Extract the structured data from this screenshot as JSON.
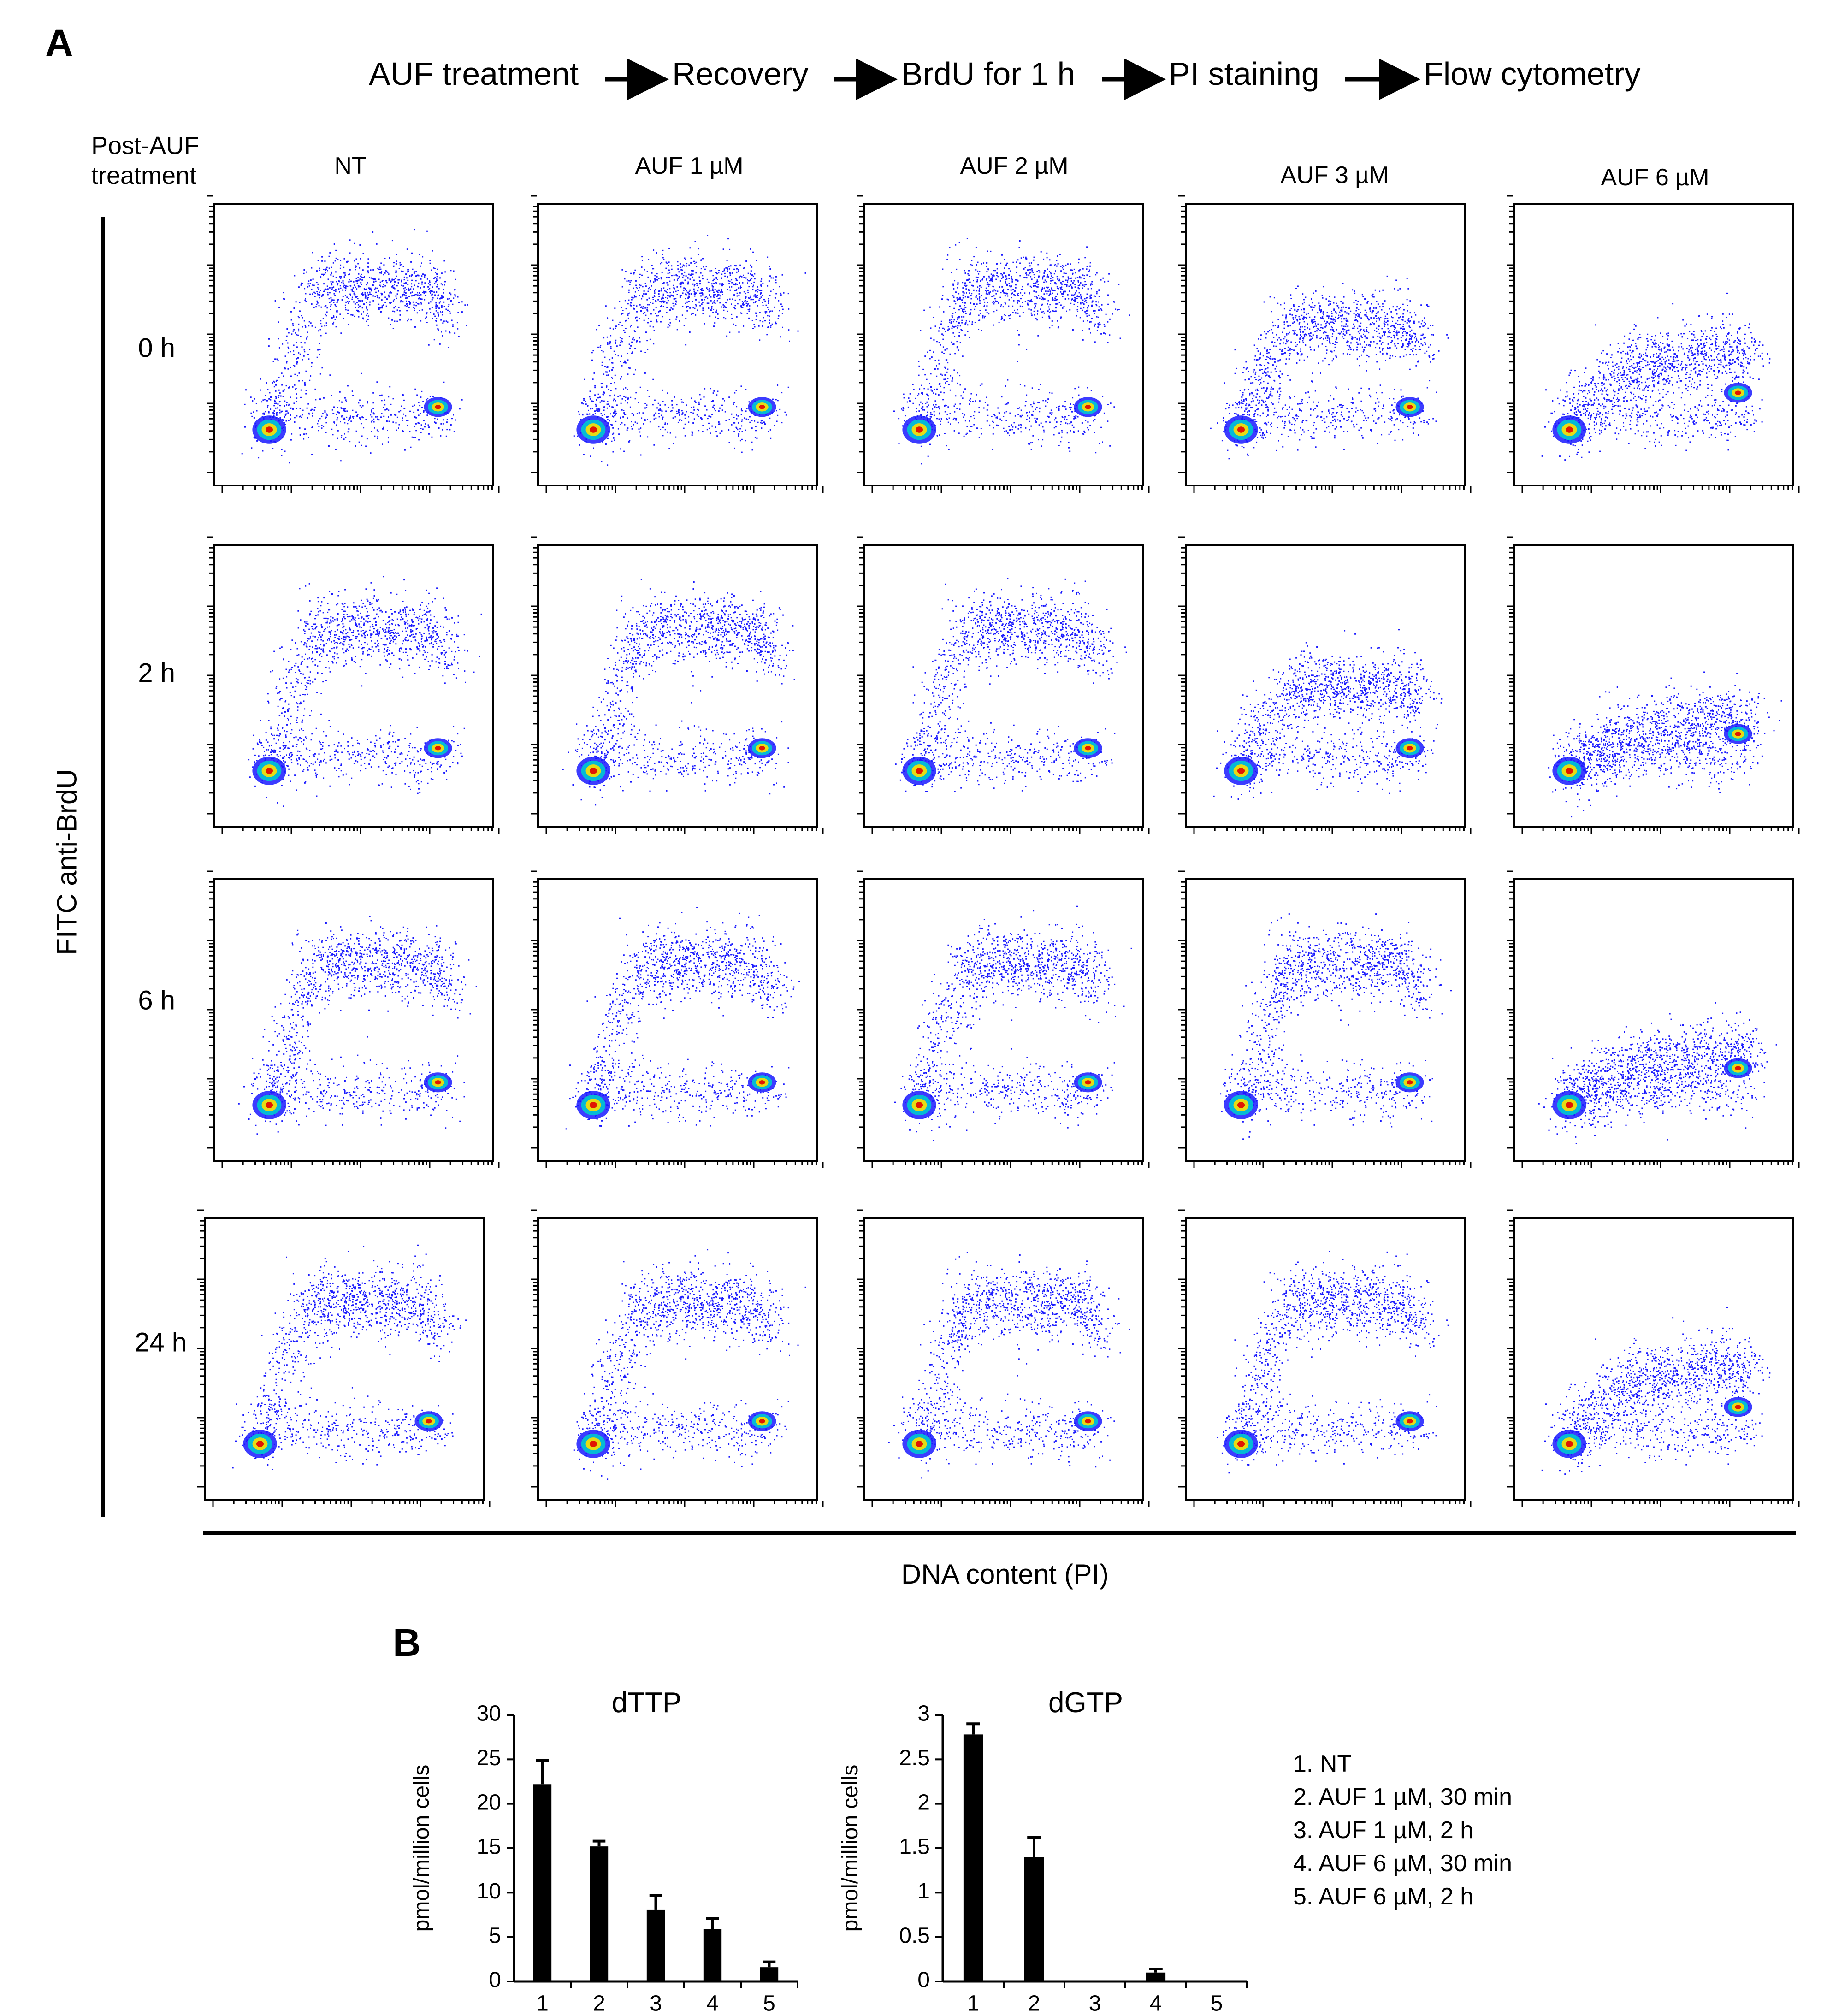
{
  "panel_a": {
    "letter": "A",
    "workflow": [
      {
        "label": "AUF treatment"
      },
      {
        "label": "Recovery"
      },
      {
        "label": "BrdU for 1 h"
      },
      {
        "label": "PI staining"
      },
      {
        "label": "Flow cytometry"
      }
    ],
    "post_treatment_label_line1": "Post-AUF",
    "post_treatment_label_line2": "treatment",
    "columns": [
      "NT",
      "AUF 1 µM",
      "AUF 2 µM",
      "AUF 3 µM",
      "AUF 6 µM"
    ],
    "rows": [
      "0 h",
      "2 h",
      "6 h",
      "24 h"
    ],
    "y_axis_title": "FITC anti-BrdU",
    "x_axis_title": "DNA content (PI)",
    "colors": {
      "scatter_base": "#1a1aff",
      "dense_mid": "#00c8d0",
      "dense_high": "#ffe000",
      "dense_core": "#e00000"
    }
  },
  "panel_b": {
    "letter": "B",
    "legend": [
      "1. NT",
      "2. AUF 1 µM, 30 min",
      "3. AUF 1 µM, 2 h",
      "4. AUF 6 µM, 30 min",
      "5. AUF 6 µM, 2 h"
    ]
  },
  "chart_data": [
    {
      "type": "bar",
      "title": "dTTP",
      "ylabel": "pmol/million cells",
      "xlabel": "",
      "categories": [
        "1",
        "2",
        "3",
        "4",
        "5"
      ],
      "values": [
        22.2,
        15.2,
        8.1,
        5.9,
        1.6
      ],
      "errors": [
        2.7,
        0.6,
        1.6,
        1.2,
        0.6
      ],
      "ylim": [
        0,
        30
      ],
      "yticks": [
        "0",
        "5",
        "10",
        "15",
        "20",
        "25",
        "30"
      ]
    },
    {
      "type": "bar",
      "title": "dGTP",
      "ylabel": "pmol/million cells",
      "xlabel": "",
      "categories": [
        "1",
        "2",
        "3",
        "4",
        "5"
      ],
      "values": [
        2.78,
        1.4,
        0.0,
        0.1,
        0.0
      ],
      "errors": [
        0.12,
        0.22,
        0.0,
        0.04,
        0.0
      ],
      "ylim": [
        0,
        3
      ],
      "yticks": [
        "0",
        "0.5",
        "1",
        "1.5",
        "2",
        "2.5",
        "3"
      ]
    }
  ]
}
